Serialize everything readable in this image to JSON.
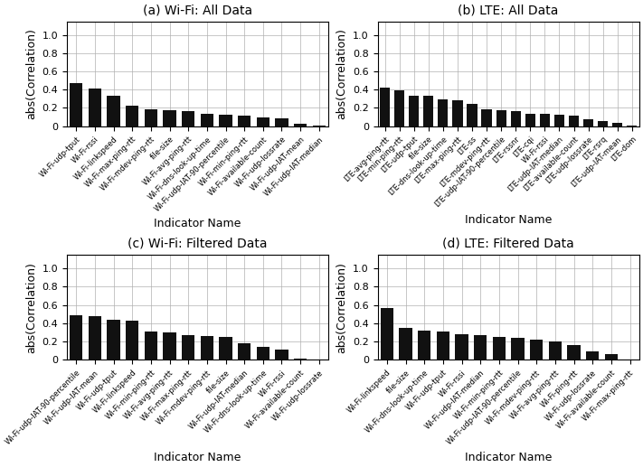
{
  "chart_data": [
    {
      "type": "bar",
      "title": "(a) Wi-Fi: All Data",
      "categories": [
        "Wi-Fi-udp-tput",
        "Wi-Fi-rssi",
        "Wi-Fi-linkspeed",
        "Wi-Fi-max-ping-rtt",
        "Wi-Fi-mdev-ping-rtt",
        "file-size",
        "Wi-Fi-avg-ping-rtt",
        "Wi-Fi-dns-look-up-time",
        "Wi-Fi-udp-IAT-90-percentile",
        "Wi-Fi-min-ping-rtt",
        "Wi-Fi-available-count",
        "Wi-Fi-udp-lossrate",
        "Wi-Fi-udp-IAT-mean",
        "Wi-Fi-udp-IAT-median"
      ],
      "values": [
        0.475,
        0.41,
        0.335,
        0.22,
        0.19,
        0.18,
        0.165,
        0.14,
        0.13,
        0.12,
        0.092,
        0.082,
        0.025,
        0.002
      ],
      "color": "#111111",
      "xlabel": "Indicator Name",
      "ylabel": "abs(Correlation)",
      "ylim": [
        0,
        1.15
      ],
      "yticks": [
        0,
        0.2,
        0.4,
        0.6,
        0.8,
        1.0
      ],
      "grid": true
    },
    {
      "type": "bar",
      "title": "(b) LTE: All Data",
      "categories": [
        "LTE-avg-ping-rtt",
        "LTE-min-ping-rtt",
        "LTE-udp-tput",
        "file-size",
        "LTE-dns-look-up-time",
        "LTE-max-ping-rtt",
        "LTE-ss",
        "LTE-mdev-ping-rtt",
        "LTE-udp-IAT-90-percentile",
        "LTE-rssnr",
        "LTE-cqi",
        "Wi-Fi-rssi",
        "LTE-udp-IAT-median",
        "LTE-available-count",
        "LTE-udp-lossrate",
        "LTE-rsrq",
        "LTE-udp-IAT-mean",
        "LTE-dom"
      ],
      "values": [
        0.425,
        0.395,
        0.335,
        0.335,
        0.29,
        0.285,
        0.24,
        0.185,
        0.175,
        0.165,
        0.135,
        0.135,
        0.13,
        0.115,
        0.08,
        0.055,
        0.04,
        0.005
      ],
      "color": "#111111",
      "xlabel": "Indicator Name",
      "ylabel": "abs(Correlation)",
      "ylim": [
        0,
        1.15
      ],
      "yticks": [
        0,
        0.2,
        0.4,
        0.6,
        0.8,
        1.0
      ],
      "grid": true
    },
    {
      "type": "bar",
      "title": "(c) Wi-Fi: Filtered Data",
      "categories": [
        "Wi-Fi-udp-IAT-90-percentile",
        "Wi-Fi-udp-IAT-mean",
        "Wi-Fi-udp-tput",
        "Wi-Fi-linkspeed",
        "Wi-Fi-min-ping-rtt",
        "Wi-Fi-avg-ping-rtt",
        "Wi-Fi-max-ping-rtt",
        "Wi-Fi-mdev-ping-rtt",
        "file-size",
        "Wi-Fi-udp-IAT-median",
        "Wi-Fi-dns-look-up-time",
        "Wi-Fi-rssi",
        "Wi-Fi-available-count",
        "Wi-Fi-udp-lossrate"
      ],
      "values": [
        0.49,
        0.48,
        0.435,
        0.425,
        0.31,
        0.295,
        0.27,
        0.26,
        0.25,
        0.185,
        0.145,
        0.11,
        0.01,
        0.001
      ],
      "color": "#111111",
      "xlabel": "Indicator Name",
      "ylabel": "abs(Correlation)",
      "ylim": [
        0,
        1.15
      ],
      "yticks": [
        0,
        0.2,
        0.4,
        0.6,
        0.8,
        1.0
      ],
      "grid": true
    },
    {
      "type": "bar",
      "title": "(d) LTE: Filtered Data",
      "categories": [
        "Wi-Fi-linkspeed",
        "file-size",
        "Wi-Fi-dns-look-up-time",
        "Wi-Fi-udp-tput",
        "Wi-Fi-rssi",
        "Wi-Fi-udp-IAT-median",
        "Wi-Fi-min-ping-rtt",
        "Wi-Fi-udp-IAT-90-percentile",
        "Wi-Fi-mdev-ping-rtt",
        "Wi-Fi-avg-ping-rtt",
        "Wi-Fi-ping-rtt",
        "Wi-Fi-udp-lossrate",
        "Wi-Fi-available-count",
        "Wi-Fi-max-ping-rtt"
      ],
      "values": [
        0.565,
        0.345,
        0.32,
        0.305,
        0.28,
        0.27,
        0.25,
        0.235,
        0.22,
        0.195,
        0.165,
        0.09,
        0.06,
        0.001
      ],
      "color": "#111111",
      "xlabel": "Indicator Name",
      "ylabel": "abs(Correlation)",
      "ylim": [
        0,
        1.15
      ],
      "yticks": [
        0,
        0.2,
        0.4,
        0.6,
        0.8,
        1.0
      ],
      "grid": true
    }
  ]
}
